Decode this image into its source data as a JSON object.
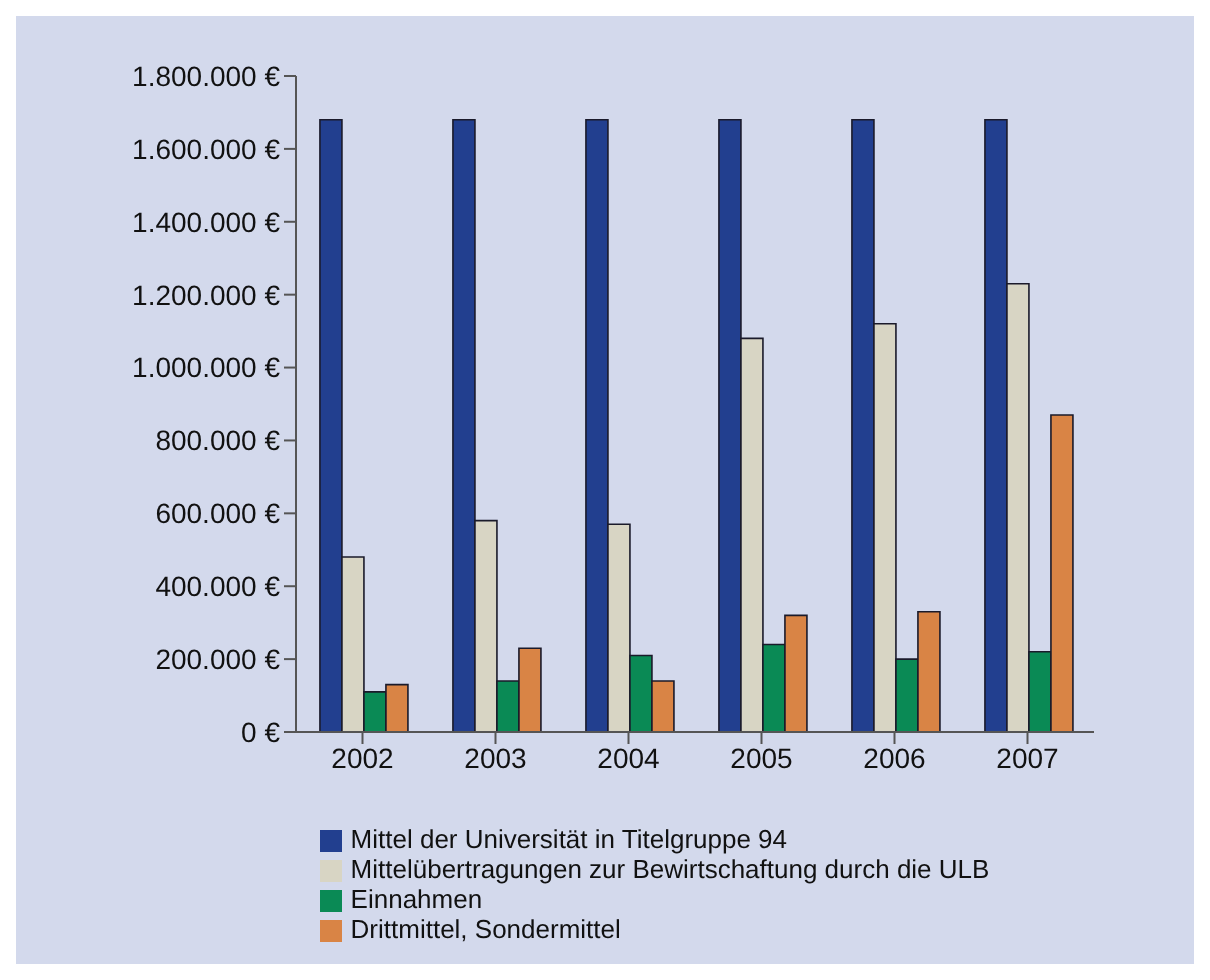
{
  "chart_data": {
    "type": "bar",
    "categories": [
      "2002",
      "2003",
      "2004",
      "2005",
      "2006",
      "2007"
    ],
    "series": [
      {
        "name": "Mittel der Universität in Titelgruppe 94",
        "color": "#223f8f",
        "values": [
          1680000,
          1680000,
          1680000,
          1680000,
          1680000,
          1680000
        ]
      },
      {
        "name": "Mittelübertragungen zur Bewirtschaftung durch die ULB",
        "color": "#d8d5c4",
        "values": [
          480000,
          580000,
          570000,
          1080000,
          1120000,
          1230000
        ]
      },
      {
        "name": "Einnahmen",
        "color": "#0a8a55",
        "values": [
          110000,
          140000,
          210000,
          240000,
          200000,
          220000
        ]
      },
      {
        "name": "Drittmittel, Sondermittel",
        "color": "#d98445",
        "values": [
          130000,
          230000,
          140000,
          320000,
          330000,
          870000
        ]
      }
    ],
    "ylim": [
      0,
      1800000
    ],
    "yticks": [
      {
        "value": 0,
        "label": "0 €"
      },
      {
        "value": 200000,
        "label": "200.000 €"
      },
      {
        "value": 400000,
        "label": "400.000 €"
      },
      {
        "value": 600000,
        "label": "600.000 €"
      },
      {
        "value": 800000,
        "label": "800.000 €"
      },
      {
        "value": 1000000,
        "label": "1.000.000 €"
      },
      {
        "value": 1200000,
        "label": "1.200.000 €"
      },
      {
        "value": 1400000,
        "label": "1.400.000 €"
      },
      {
        "value": 1600000,
        "label": "1.600.000 €"
      },
      {
        "value": 1800000,
        "label": "1.800.000 €"
      }
    ],
    "grid": false,
    "legend": "bottom"
  }
}
